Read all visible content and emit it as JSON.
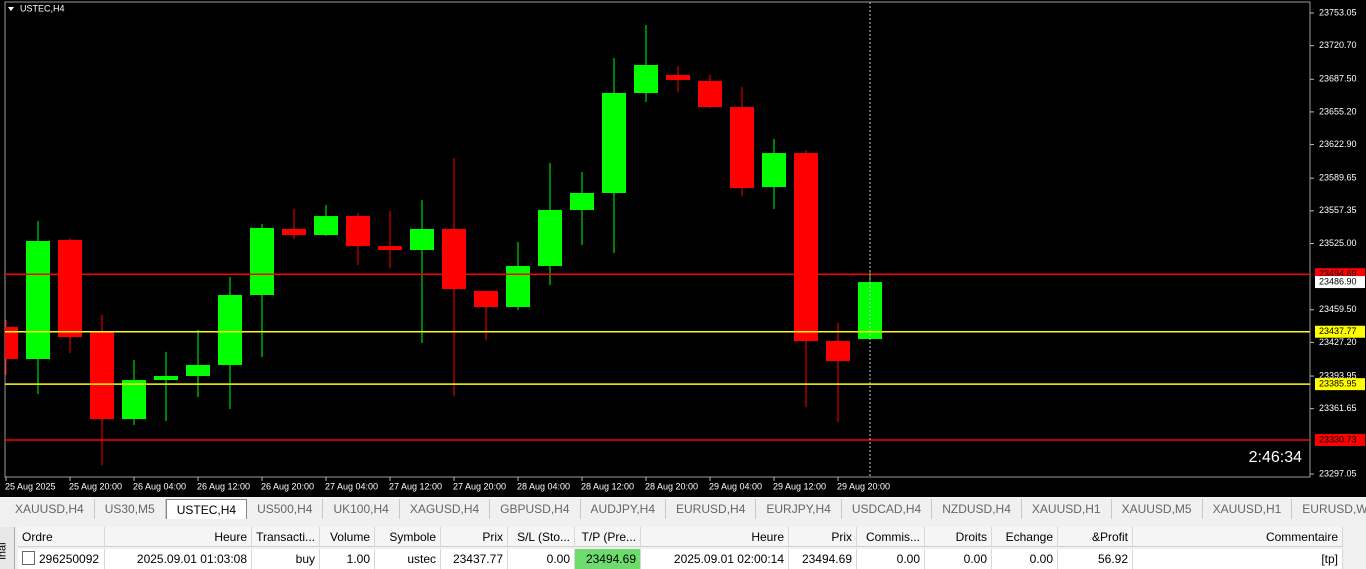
{
  "chart_data": {
    "type": "candlestick",
    "title": "USTEC,H4",
    "categories": [
      "25 Aug 2025",
      null,
      "25 Aug 20:00",
      null,
      "26 Aug 04:00",
      null,
      "26 Aug 12:00",
      null,
      "26 Aug 20:00",
      null,
      "27 Aug 04:00",
      null,
      "27 Aug 12:00",
      null,
      "27 Aug 20:00",
      null,
      "28 Aug 04:00",
      null,
      "28 Aug 12:00",
      null,
      "28 Aug 20:00",
      null,
      "29 Aug 04:00",
      null,
      "29 Aug 12:00",
      null,
      "29 Aug 20:00",
      null
    ],
    "open": [
      23442.4,
      23410.8,
      23528.5,
      23438.5,
      23351.4,
      23390.0,
      23394.0,
      23404.9,
      23474.1,
      23539.4,
      23533.4,
      23552.2,
      23522.5,
      23518.6,
      23539.4,
      23478.1,
      23462.2,
      23502.8,
      23558.2,
      23575.0,
      23673.9,
      23691.7,
      23685.8,
      23660.0,
      23580.9,
      23614.5,
      23428.6,
      23430.6
    ],
    "high": [
      23449.4,
      23547.3,
      23530.5,
      23454.3,
      23409.8,
      23417.7,
      23439.5,
      23491.9,
      23544.3,
      23559.2,
      23563.1,
      23555.2,
      23557.2,
      23568.0,
      23609.6,
      23478.1,
      23526.5,
      23604.7,
      23595.8,
      23708.5,
      23741.2,
      23700.6,
      23691.7,
      23679.8,
      23628.4,
      23617.5,
      23446.4,
      23496.8
    ],
    "low": [
      23394.9,
      23376.2,
      23416.7,
      23305.9,
      23345.5,
      23349.5,
      23373.2,
      23361.3,
      23412.8,
      23529.5,
      23532.4,
      23503.8,
      23500.8,
      23426.6,
      23374.2,
      23429.6,
      23459.3,
      23484.0,
      23523.5,
      23515.6,
      23665.0,
      23674.9,
      23659.1,
      23572.0,
      23559.2,
      23363.3,
      23348.5,
      23429.6
    ],
    "close": [
      23410.8,
      23527.5,
      23432.5,
      23351.4,
      23390.0,
      23394.0,
      23404.9,
      23474.1,
      23540.4,
      23533.4,
      23552.2,
      23522.5,
      23518.6,
      23539.4,
      23480.0,
      23462.2,
      23502.8,
      23558.2,
      23575.0,
      23673.9,
      23701.6,
      23686.8,
      23660.0,
      23579.9,
      23614.5,
      23428.6,
      23408.8,
      23486.9
    ],
    "up_color": "#00ff00",
    "down_color": "#ff0000",
    "ylim": [
      23294.1,
      23763.9
    ],
    "yticks": [
      {
        "value": 23753.05,
        "label": "23753.05"
      },
      {
        "value": 23720.7,
        "label": "23720.70"
      },
      {
        "value": 23687.5,
        "label": "23687.50"
      },
      {
        "value": 23655.2,
        "label": "23655.20"
      },
      {
        "value": 23622.9,
        "label": "23622.90"
      },
      {
        "value": 23589.65,
        "label": "23589.65"
      },
      {
        "value": 23557.35,
        "label": "23557.35"
      },
      {
        "value": 23525,
        "label": "23525.00"
      },
      {
        "value": 23459.5,
        "label": "23459.50"
      },
      {
        "value": 23427.2,
        "label": "23427.20"
      },
      {
        "value": 23393.95,
        "label": "23393.95"
      },
      {
        "value": 23361.65,
        "label": "23361.65"
      },
      {
        "value": 23297.05,
        "label": "23297.05"
      }
    ],
    "levels": [
      {
        "value": 23494.69,
        "color": "#ff0000"
      },
      {
        "value": 23437.77,
        "color": "#ffff00"
      },
      {
        "value": 23385.95,
        "color": "#ffff00"
      },
      {
        "value": 23330.73,
        "color": "#ff0000"
      }
    ],
    "current_price": {
      "value": 23486.9,
      "label": "23486.90"
    },
    "timer": "2:46:34"
  },
  "tabs": [
    "XAUUSD,H4",
    "US30,M5",
    "USTEC,H4",
    "US500,H4",
    "UK100,H4",
    "XAGUSD,H4",
    "GBPUSD,H4",
    "AUDJPY,H4",
    "EURUSD,H4",
    "EURJPY,H4",
    "USDCAD,H4",
    "NZDUSD,H4",
    "XAUUSD,H1",
    "XAUUSD,M5",
    "XAUUSD,H1",
    "EURUSD,Weekly"
  ],
  "active_tab": 2,
  "side_label": "inal",
  "table": {
    "headers": [
      "Ordre",
      "Heure",
      "Transacti...",
      "Volume",
      "Symbole",
      "Prix",
      "S/L (Sto...",
      "T/P (Pre...",
      "Heure",
      "Prix",
      "Commis...",
      "Droits",
      "Echange",
      "&Profit",
      "Commentaire"
    ],
    "rows": [
      [
        "296250092",
        "2025.09.01 01:03:08",
        "buy",
        "1.00",
        "ustec",
        "23437.77",
        "0.00",
        "23494.69",
        "2025.09.01 02:00:14",
        "23494.69",
        "0.00",
        "0.00",
        "0.00",
        "56.92",
        "[tp]"
      ]
    ]
  }
}
